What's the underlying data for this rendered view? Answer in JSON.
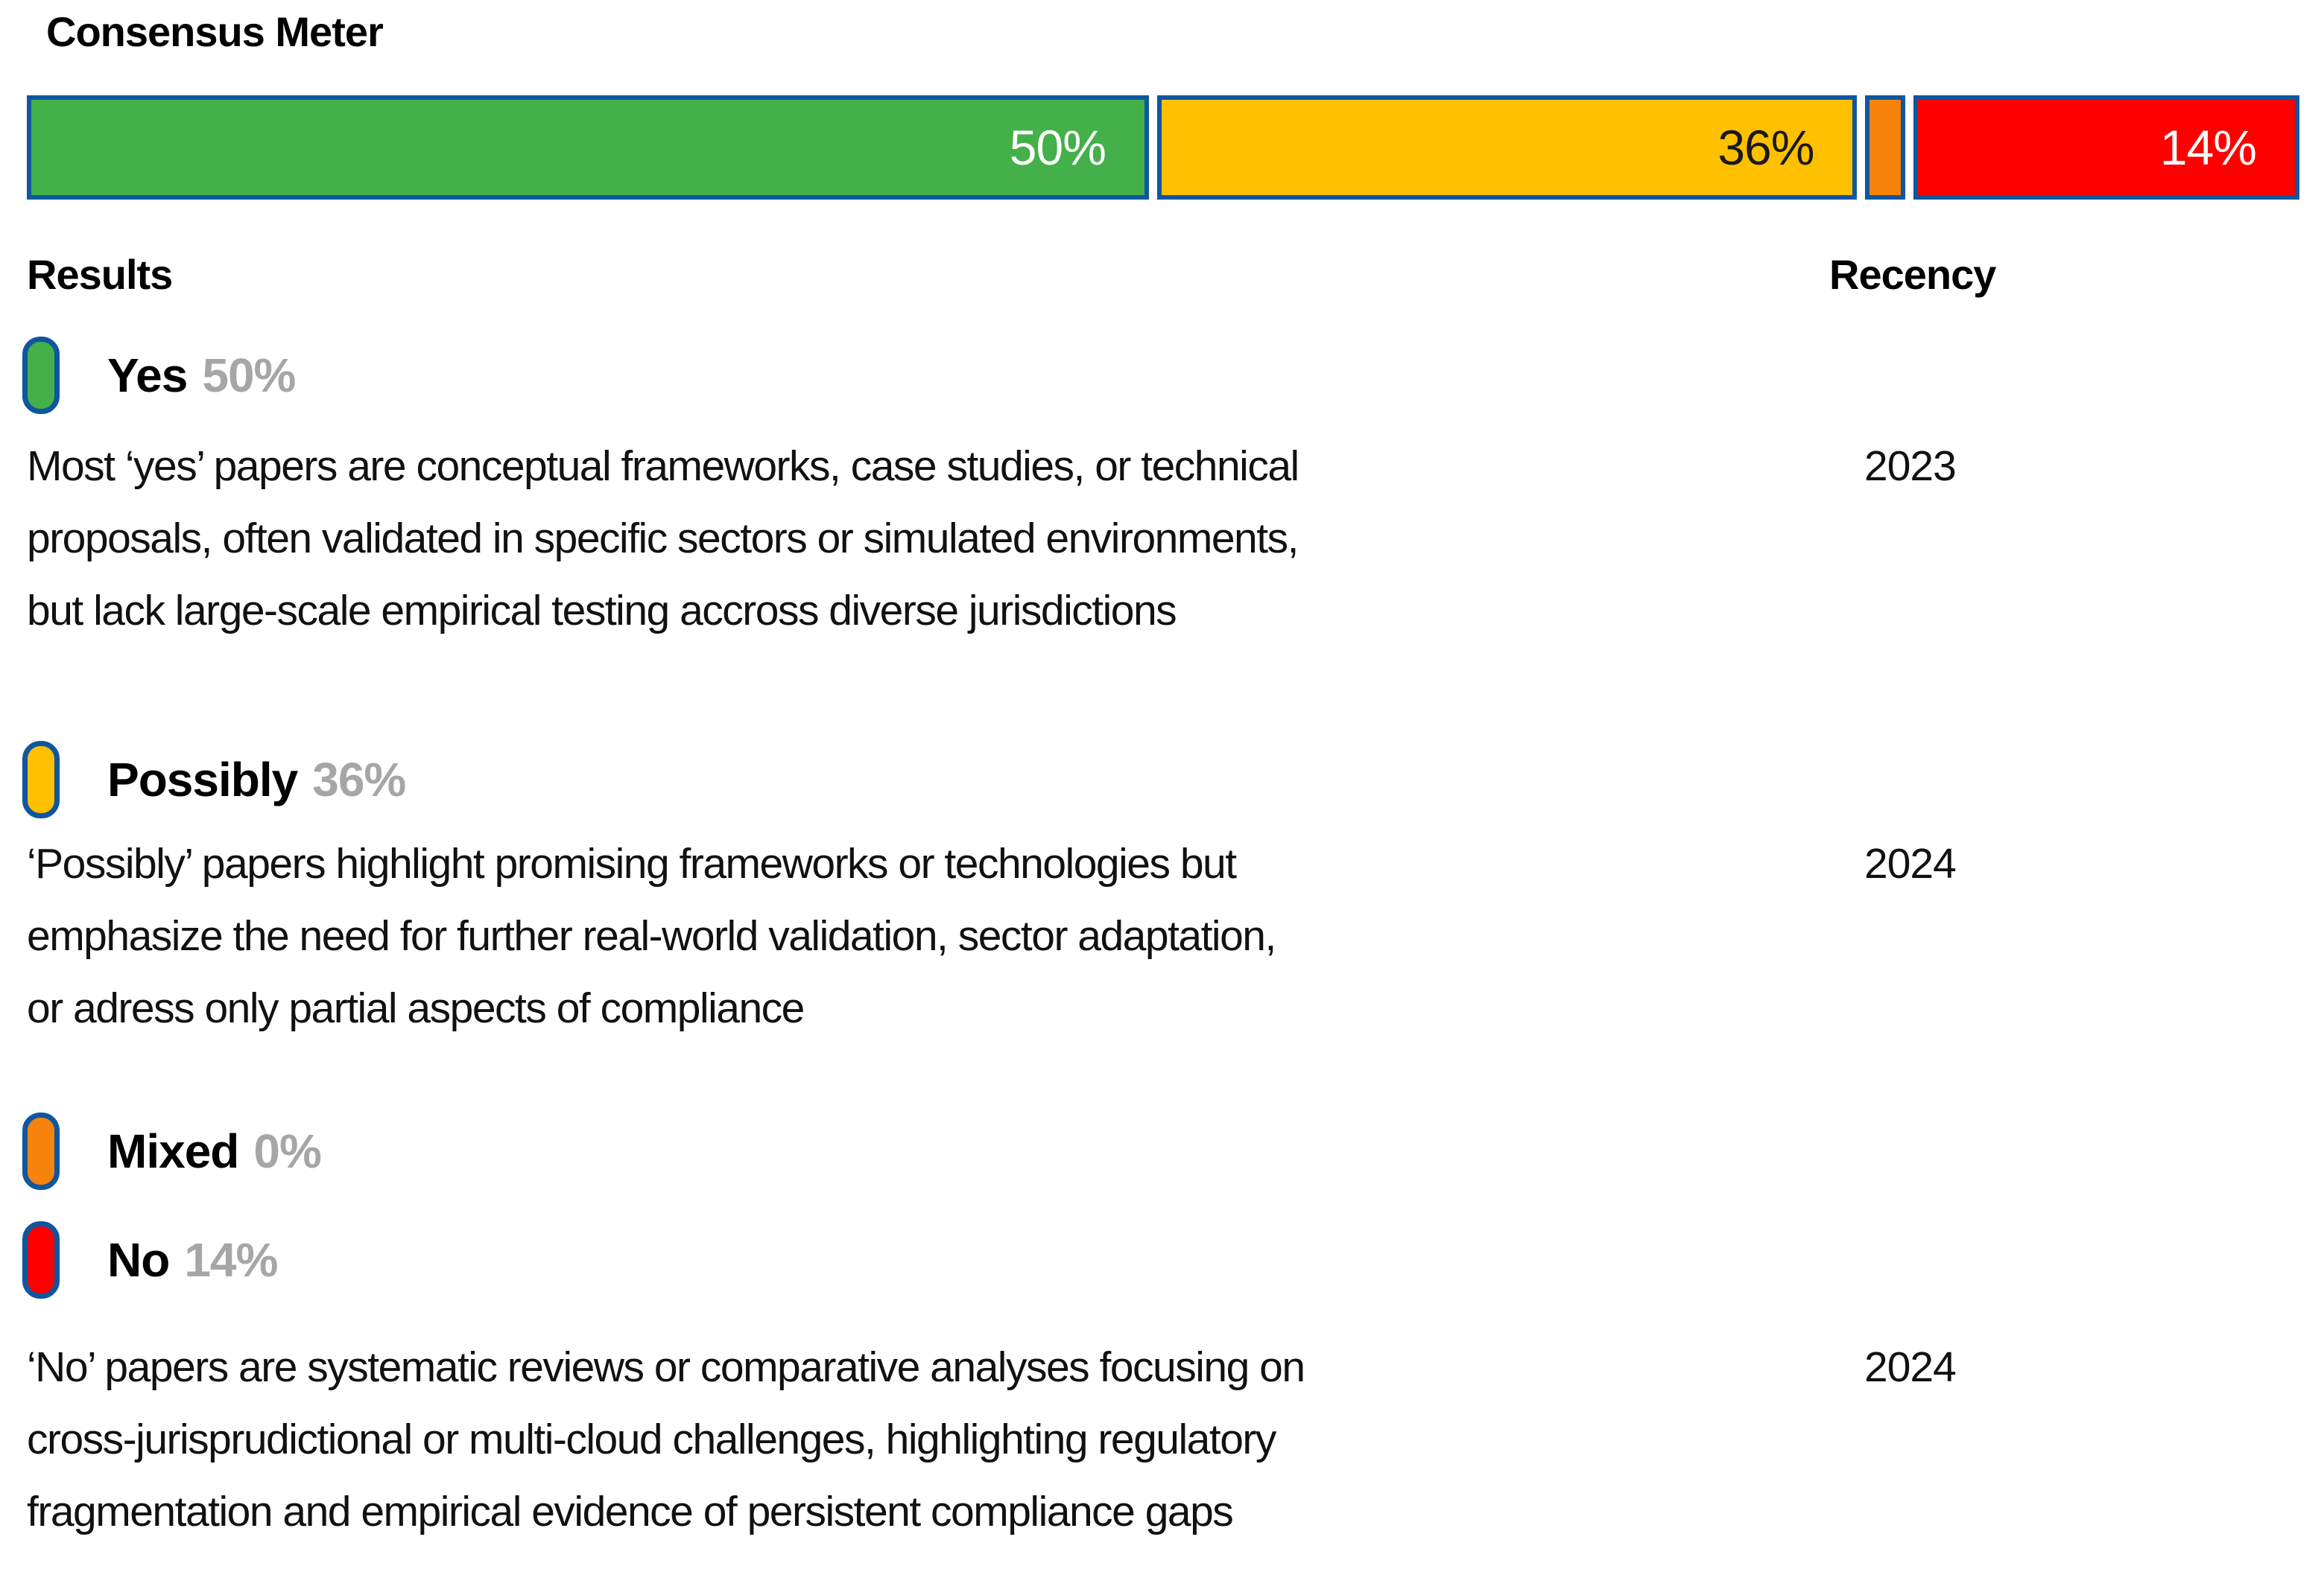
{
  "title": "Consensus Meter",
  "colors": {
    "border_blue": "#0F569F",
    "pct_gray": "#A6A6A6",
    "green": "#43B049",
    "yellow": "#FFC000",
    "orange": "#F8830C",
    "red": "#FF0000"
  },
  "meter": {
    "border_color": "#0F569F",
    "segments": [
      {
        "name": "Yes",
        "label": "50%",
        "value": 50,
        "flex": 1548,
        "color": "#43B049",
        "label_color": "#FFFFFF"
      },
      {
        "name": "Possibly",
        "label": "36%",
        "value": 36,
        "flex": 940,
        "color": "#FFC000",
        "label_color": "#1A1A1A"
      },
      {
        "name": "Mixed",
        "label": "",
        "value": 0,
        "flex": 45,
        "color": "#F8830C",
        "label_color": "#FFFFFF"
      },
      {
        "name": "No",
        "label": "14%",
        "value": 14,
        "flex": 487,
        "color": "#FF0000",
        "label_color": "#FFFFFF"
      }
    ]
  },
  "headers": {
    "results": "Results",
    "recency": "Recency"
  },
  "legend": [
    {
      "name": "Yes",
      "pct": "50%",
      "color": "#43B049",
      "recency": "2023",
      "description_lines": [
        "Most ‘yes’ papers are conceptual frameworks, case studies, or technical",
        "proposals, often validated in specific sectors or simulated environments,",
        "but lack large-scale empirical testing accross diverse jurisdictions"
      ]
    },
    {
      "name": "Possibly",
      "pct": "36%",
      "color": "#FFC000",
      "recency": "2024",
      "description_lines": [
        "‘Possibly’ papers highlight promising frameworks or technologies but",
        "emphasize the need for further real-world validation, sector adaptation,",
        "or adress only partial aspects of compliance"
      ]
    },
    {
      "name": "Mixed",
      "pct": "0%",
      "color": "#F8830C",
      "recency": "",
      "description_lines": []
    },
    {
      "name": "No",
      "pct": "14%",
      "color": "#FF0000",
      "recency": "2024",
      "description_lines": [
        "‘No’ papers are systematic reviews or comparative analyses focusing on",
        "cross-jurisprudictional or multi-cloud challenges, highlighting regulatory",
        "fragmentation and empirical evidence of persistent compliance gaps"
      ]
    }
  ],
  "chart_data": {
    "type": "bar",
    "variant": "stacked-horizontal-single-bar",
    "title": "Consensus Meter",
    "categories": [
      "Yes",
      "Possibly",
      "Mixed",
      "No"
    ],
    "values": [
      50,
      36,
      0,
      14
    ],
    "unit": "%",
    "xlim": [
      0,
      100
    ],
    "colors": [
      "#43B049",
      "#FFC000",
      "#F8830C",
      "#FF0000"
    ],
    "bar_labels": [
      "50%",
      "36%",
      "",
      "14%"
    ],
    "recency": [
      "2023",
      "2024",
      "",
      "2024"
    ],
    "grid": false,
    "legend_position": "below-bar"
  }
}
